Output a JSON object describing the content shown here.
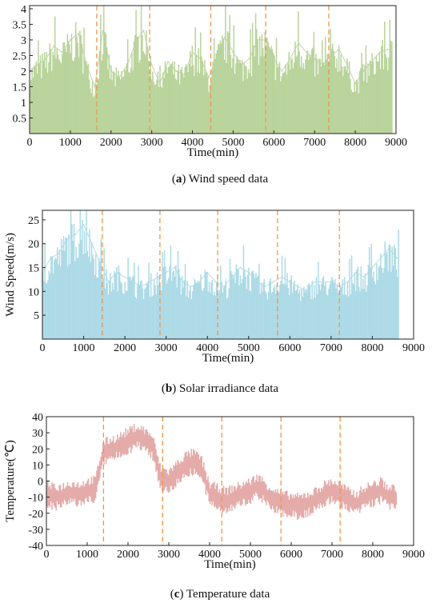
{
  "captions": [
    {
      "letter": "a",
      "text": " Wind speed data"
    },
    {
      "letter": "b",
      "text": " Solar irradiance data"
    },
    {
      "letter": "c",
      "text": " Temperature data"
    }
  ],
  "chart_data": [
    {
      "type": "bar",
      "title": "",
      "xlabel": "Time(min)",
      "ylabel": "",
      "xlim": [
        0,
        9000
      ],
      "ylim": [
        0,
        4.1
      ],
      "xticks": [
        0,
        1000,
        2000,
        3000,
        4000,
        5000,
        6000,
        7000,
        8000,
        9000
      ],
      "yticks": [
        0.5,
        1,
        1.5,
        2,
        2.5,
        3,
        3.5,
        4
      ],
      "series_color": "#b9d39b",
      "divider_color": "#f0954a",
      "dividers_x": [
        1650,
        2950,
        4450,
        5800,
        7350
      ],
      "series": [
        {
          "x_start": 0,
          "x_step": 200,
          "values": [
            2.0,
            2.2,
            2.4,
            2.8,
            2.6,
            3.0,
            3.2,
            2.2,
            1.5,
            3.3,
            2.0,
            1.8,
            2.2,
            2.9,
            3.3,
            2.2,
            1.6,
            2.3,
            2.0,
            1.9,
            2.6,
            2.4,
            1.8,
            2.5,
            3.1,
            2.6,
            2.2,
            2.4,
            3.0,
            3.0,
            2.4,
            2.0,
            2.4,
            2.9,
            2.6,
            2.4,
            2.2,
            2.5,
            2.7,
            2.2,
            1.6,
            2.0,
            2.3,
            2.6,
            2.7
          ]
        }
      ]
    },
    {
      "type": "bar",
      "title": "",
      "xlabel": "Time(min)",
      "ylabel": "Wind Speed(m/s)",
      "xlim": [
        0,
        9000
      ],
      "ylim": [
        0,
        27
      ],
      "xticks": [
        0,
        1000,
        2000,
        3000,
        4000,
        5000,
        6000,
        7000,
        8000,
        9000
      ],
      "yticks": [
        5,
        10,
        15,
        20,
        25
      ],
      "series_color": "#acdae6",
      "divider_color": "#f0954a",
      "dividers_x": [
        1450,
        2850,
        4250,
        5700,
        7200
      ],
      "series": [
        {
          "x_start": 0,
          "x_step": 200,
          "values": [
            14,
            17,
            18,
            21,
            22,
            24,
            20,
            16,
            12,
            14,
            13,
            12,
            11,
            12,
            13,
            14,
            15,
            12,
            11,
            12,
            14,
            12,
            11,
            13,
            15,
            14,
            12,
            11,
            12,
            13,
            12,
            11,
            10,
            12,
            12,
            12,
            11,
            12,
            14,
            13,
            15,
            17,
            19,
            17
          ]
        }
      ]
    },
    {
      "type": "line",
      "title": "",
      "xlabel": "Time(min)",
      "ylabel": "Temperature(℃)",
      "xlim": [
        0,
        9000
      ],
      "ylim": [
        -40,
        40
      ],
      "xticks": [
        0,
        1000,
        2000,
        3000,
        4000,
        5000,
        6000,
        7000,
        8000,
        9000
      ],
      "yticks": [
        -40,
        -30,
        -20,
        -10,
        0,
        10,
        20,
        30,
        40
      ],
      "series_color": "#e3aaa8",
      "divider_color": "#f0954a",
      "dividers_x": [
        1400,
        2850,
        4300,
        5750,
        7200
      ],
      "series": [
        {
          "x_start": 0,
          "x_step": 200,
          "values": [
            -8,
            -10,
            -9,
            -7,
            -8,
            -6,
            -5,
            18,
            20,
            22,
            25,
            28,
            26,
            22,
            2,
            0,
            5,
            10,
            12,
            8,
            -8,
            -10,
            -12,
            -10,
            -8,
            -6,
            -3,
            -8,
            -12,
            -14,
            -15,
            -16,
            -14,
            -12,
            -8,
            -6,
            -8,
            -12,
            -14,
            -10,
            -8,
            -6,
            -10
          ]
        }
      ]
    }
  ]
}
